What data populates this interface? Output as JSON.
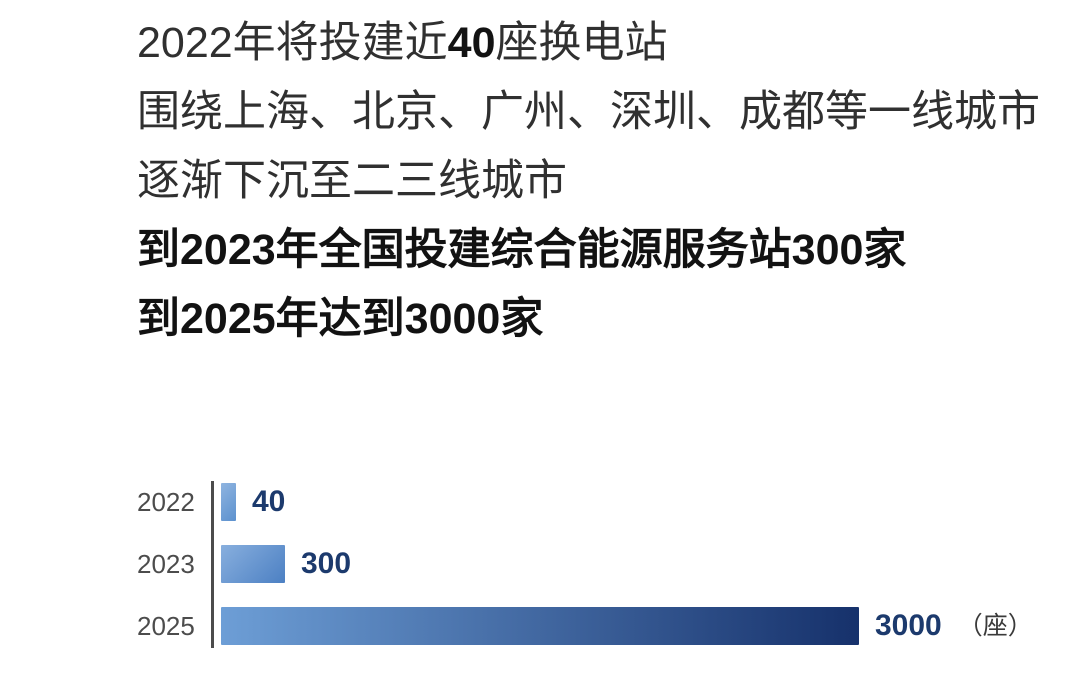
{
  "headline": {
    "line1_prefix": "2022年将投建近",
    "line1_highlight": "40",
    "line1_suffix": "座换电站",
    "line2": "围绕上海、北京、广州、深圳、成都等一线城市",
    "line3": "逐渐下沉至二三线城市",
    "line4": "到2023年全国投建综合能源服务站300家",
    "line5": "到2025年达到3000家"
  },
  "chart_data": {
    "type": "bar",
    "orientation": "horizontal",
    "categories": [
      "2022",
      "2023",
      "2025"
    ],
    "values": [
      40,
      300,
      3000
    ],
    "unit_label": "（座）",
    "xlim": [
      0,
      3000
    ],
    "grid": false,
    "legend": false,
    "colors": {
      "year_label": "#4c4c4c",
      "axis_line": "#4c4c4c",
      "value_label": "#1c3a6d",
      "unit_label": "#3a3a3a",
      "bar_gradients": [
        [
          "#8fb4e0",
          "#5c91ce"
        ],
        [
          "#88afde",
          "#4c80c3"
        ],
        [
          "#6d9ed6",
          "#16316b"
        ]
      ]
    }
  }
}
